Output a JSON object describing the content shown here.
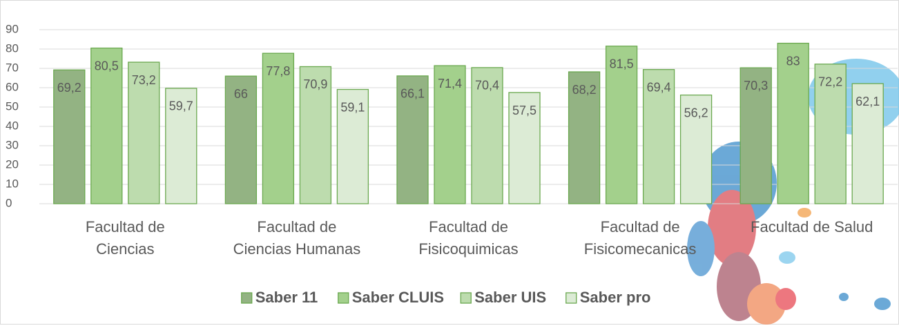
{
  "chart_data": {
    "type": "bar",
    "categories": [
      "Facultad de Ciencias",
      "Facultad de Ciencias Humanas",
      "Facultad de Fisicoquimicas",
      "Facultad de Fisicomecanicas",
      "Facultad de Salud"
    ],
    "series": [
      {
        "name": "Saber 11",
        "color": "#93b383",
        "values": [
          69.2,
          66,
          66.1,
          68.2,
          70.3
        ],
        "value_labels": [
          "69,2",
          "66",
          "66,1",
          "68,2",
          "70,3"
        ]
      },
      {
        "name": "Saber CLUIS",
        "color": "#a3d08c",
        "values": [
          80.5,
          77.8,
          71.4,
          81.5,
          83
        ],
        "value_labels": [
          "80,5",
          "77,8",
          "71,4",
          "81,5",
          "83"
        ]
      },
      {
        "name": "Saber UIS",
        "color": "#bddcae",
        "values": [
          73.2,
          70.9,
          70.4,
          69.4,
          72.2
        ],
        "value_labels": [
          "73,2",
          "70,9",
          "70,4",
          "69,4",
          "72,2"
        ]
      },
      {
        "name": "Saber pro",
        "color": "#dcebd5",
        "values": [
          59.7,
          59.1,
          57.5,
          56.2,
          62.1
        ],
        "value_labels": [
          "59,7",
          "59,1",
          "57,5",
          "56,2",
          "62,1"
        ]
      }
    ],
    "ylim": [
      0,
      90
    ],
    "yticks": [
      0,
      10,
      20,
      30,
      40,
      50,
      60,
      70,
      80,
      90
    ],
    "grid": true,
    "legend": "bottom"
  }
}
